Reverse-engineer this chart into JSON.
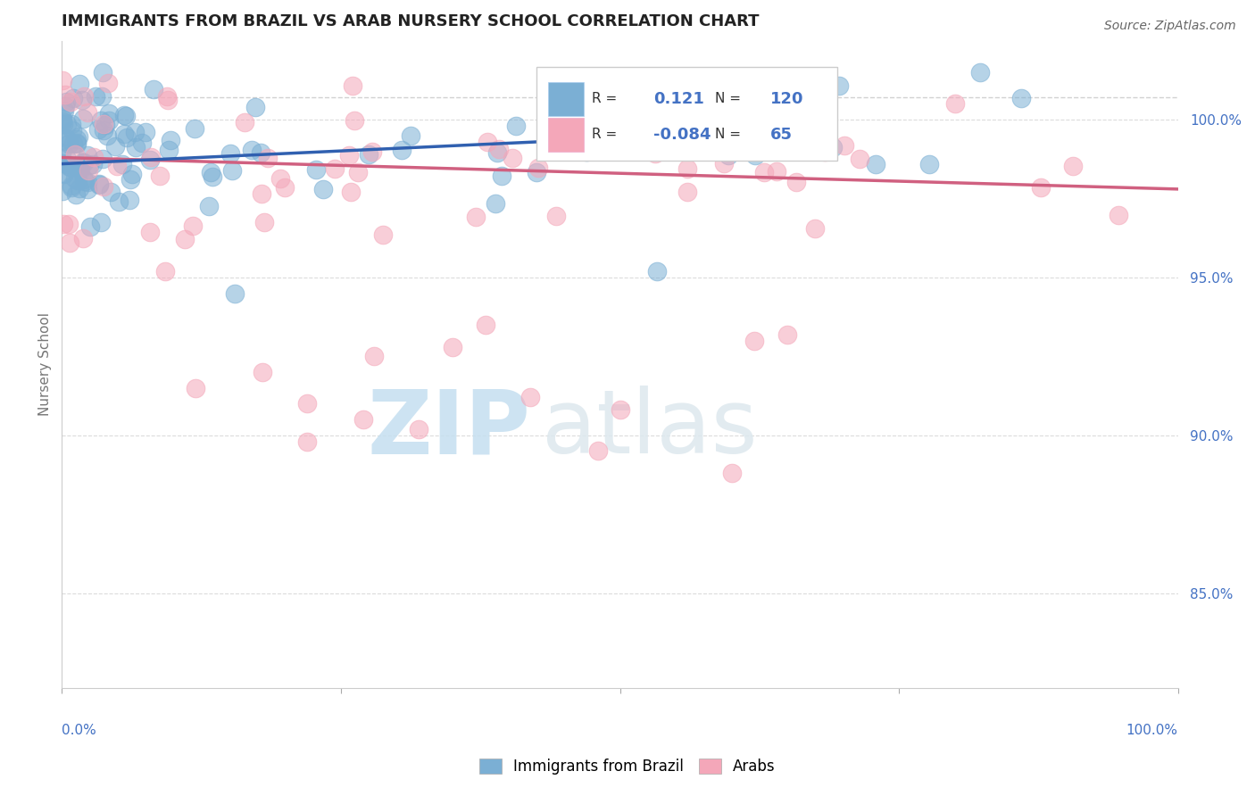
{
  "title": "IMMIGRANTS FROM BRAZIL VS ARAB NURSERY SCHOOL CORRELATION CHART",
  "source": "Source: ZipAtlas.com",
  "ylabel": "Nursery School",
  "x_min": 0.0,
  "x_max": 100.0,
  "y_min": 82.0,
  "y_max": 102.5,
  "y_ticks": [
    85.0,
    90.0,
    95.0,
    100.0
  ],
  "y_tick_labels": [
    "85.0%",
    "90.0%",
    "95.0%",
    "100.0%"
  ],
  "legend_r1_val": "0.121",
  "legend_n1_val": "120",
  "legend_r2_val": "-0.084",
  "legend_n2_val": "65",
  "brazil_color": "#7bafd4",
  "arab_color": "#f4a7b9",
  "brazil_label": "Immigrants from Brazil",
  "arab_label": "Arabs",
  "watermark_zip": "ZIP",
  "watermark_atlas": "atlas",
  "watermark_color": "#d8eef8",
  "background_color": "#ffffff",
  "grid_color": "#cccccc",
  "title_color": "#222222",
  "axis_label_color": "#777777",
  "tick_color": "#4472c4",
  "blue_line_color": "#3060b0",
  "pink_line_color": "#d06080",
  "brazil_line_x": [
    0,
    55
  ],
  "brazil_line_y": [
    98.6,
    99.5
  ],
  "arab_line_x": [
    0,
    100
  ],
  "arab_line_y": [
    98.8,
    97.8
  ],
  "dashed_line_y": 100.7
}
